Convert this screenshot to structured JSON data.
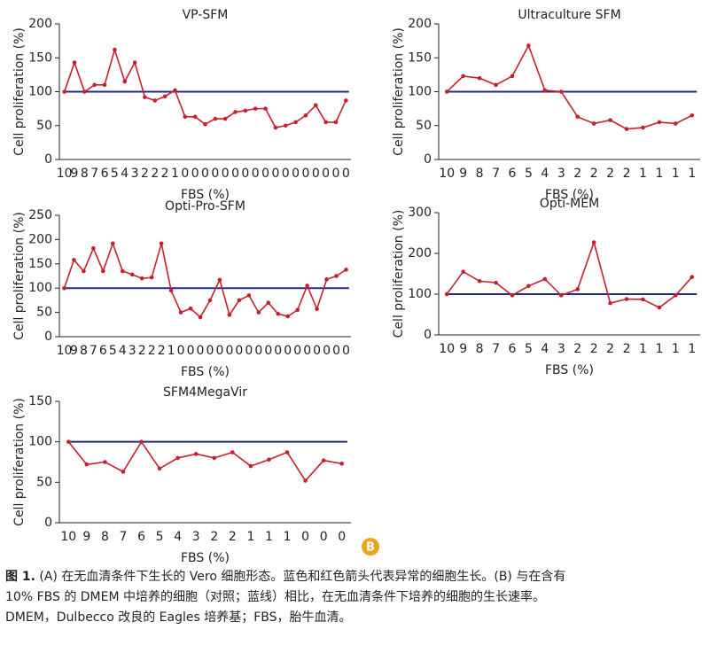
{
  "chart_data": [
    {
      "type": "line",
      "title": "VP-SFM",
      "xlabel": "FBS (%)",
      "ylabel": "Cell proliferation (%)",
      "categories": [
        "10",
        "9",
        "8",
        "7",
        "6",
        "5",
        "4",
        "3",
        "2",
        "2",
        "2",
        "1",
        "0",
        "0",
        "0",
        "0",
        "0",
        "0",
        "0",
        "0",
        "0",
        "0",
        "0",
        "0",
        "0",
        "0",
        "0",
        "0",
        "0"
      ],
      "values": [
        100,
        143,
        100,
        110,
        110,
        162,
        115,
        143,
        92,
        87,
        93,
        102,
        63,
        63,
        52,
        60,
        60,
        70,
        72,
        75,
        75,
        47,
        50,
        55,
        65,
        80,
        55,
        55,
        87
      ],
      "color": "#c8202a",
      "ylim": [
        0,
        200
      ],
      "yticks": [
        0,
        50,
        100,
        150,
        200
      ],
      "reference_line": 100,
      "reference_color": "#1f2a8a"
    },
    {
      "type": "line",
      "title": "Ultraculture SFM",
      "xlabel": "FBS (%)",
      "ylabel": "Cell proliferation (%)",
      "categories": [
        "10",
        "9",
        "8",
        "7",
        "6",
        "5",
        "4",
        "3",
        "2",
        "2",
        "2",
        "2",
        "1",
        "1",
        "1",
        "1"
      ],
      "values": [
        100,
        123,
        120,
        110,
        123,
        168,
        102,
        100,
        63,
        53,
        58,
        45,
        47,
        55,
        53,
        65
      ],
      "color": "#c8202a",
      "ylim": [
        0,
        200
      ],
      "yticks": [
        0,
        50,
        100,
        150,
        200
      ],
      "reference_line": 100,
      "reference_color": "#1f2a8a"
    },
    {
      "type": "line",
      "title": "Opti-Pro-SFM",
      "xlabel": "FBS (%)",
      "ylabel": "Cell proliferation (%)",
      "categories": [
        "10",
        "9",
        "8",
        "7",
        "6",
        "5",
        "4",
        "3",
        "2",
        "2",
        "2",
        "1",
        "0",
        "0",
        "0",
        "0",
        "0",
        "0",
        "0",
        "0",
        "0",
        "0",
        "0",
        "0",
        "0",
        "0",
        "0",
        "0",
        "0",
        "0"
      ],
      "values": [
        100,
        158,
        135,
        182,
        135,
        192,
        135,
        128,
        120,
        122,
        192,
        95,
        50,
        58,
        40,
        75,
        117,
        45,
        75,
        85,
        50,
        70,
        47,
        42,
        55,
        105,
        57,
        118,
        125,
        138
      ],
      "color": "#c8202a",
      "ylim": [
        0,
        250
      ],
      "yticks": [
        0,
        50,
        100,
        150,
        200,
        250
      ],
      "reference_line": 100,
      "reference_color": "#1f2a8a"
    },
    {
      "type": "line",
      "title": "Opti-MEM",
      "xlabel": "FBS (%)",
      "ylabel": "Cell proliferation (%)",
      "categories": [
        "10",
        "9",
        "8",
        "7",
        "6",
        "5",
        "4",
        "3",
        "2",
        "2",
        "2",
        "2",
        "1",
        "1",
        "1",
        "1"
      ],
      "values": [
        100,
        155,
        132,
        128,
        97,
        120,
        137,
        97,
        112,
        227,
        78,
        88,
        87,
        67,
        97,
        142
      ],
      "color": "#c8202a",
      "ylim": [
        0,
        300
      ],
      "yticks": [
        0,
        100,
        200,
        300
      ],
      "reference_line": 100,
      "reference_color": "#1f2a8a"
    },
    {
      "type": "line",
      "title": "SFM4MegaVir",
      "xlabel": "FBS (%)",
      "ylabel": "Cell proliferation (%)",
      "categories": [
        "10",
        "9",
        "8",
        "7",
        "6",
        "5",
        "4",
        "3",
        "2",
        "2",
        "1",
        "1",
        "1",
        "0",
        "0",
        "0"
      ],
      "values": [
        100,
        72,
        75,
        63,
        100,
        67,
        80,
        85,
        80,
        87,
        70,
        78,
        87,
        52,
        77,
        73
      ],
      "color": "#c8202a",
      "ylim": [
        0,
        150
      ],
      "yticks": [
        0,
        50,
        100,
        150
      ],
      "reference_line": 100,
      "reference_color": "#1f2a8a"
    }
  ],
  "panel_label": "B",
  "caption": {
    "label": "图 1.",
    "lines": [
      "(A) 在无血清条件下生长的 Vero 细胞形态。蓝色和红色箭头代表异常的细胞生长。(B) 与在含有",
      "10% FBS 的 DMEM 中培养的细胞（对照；蓝线）相比，在无血清条件下培养的细胞的生长速率。",
      "DMEM，Dulbecco 改良的 Eagles 培养基；FBS，胎牛血清。"
    ]
  }
}
